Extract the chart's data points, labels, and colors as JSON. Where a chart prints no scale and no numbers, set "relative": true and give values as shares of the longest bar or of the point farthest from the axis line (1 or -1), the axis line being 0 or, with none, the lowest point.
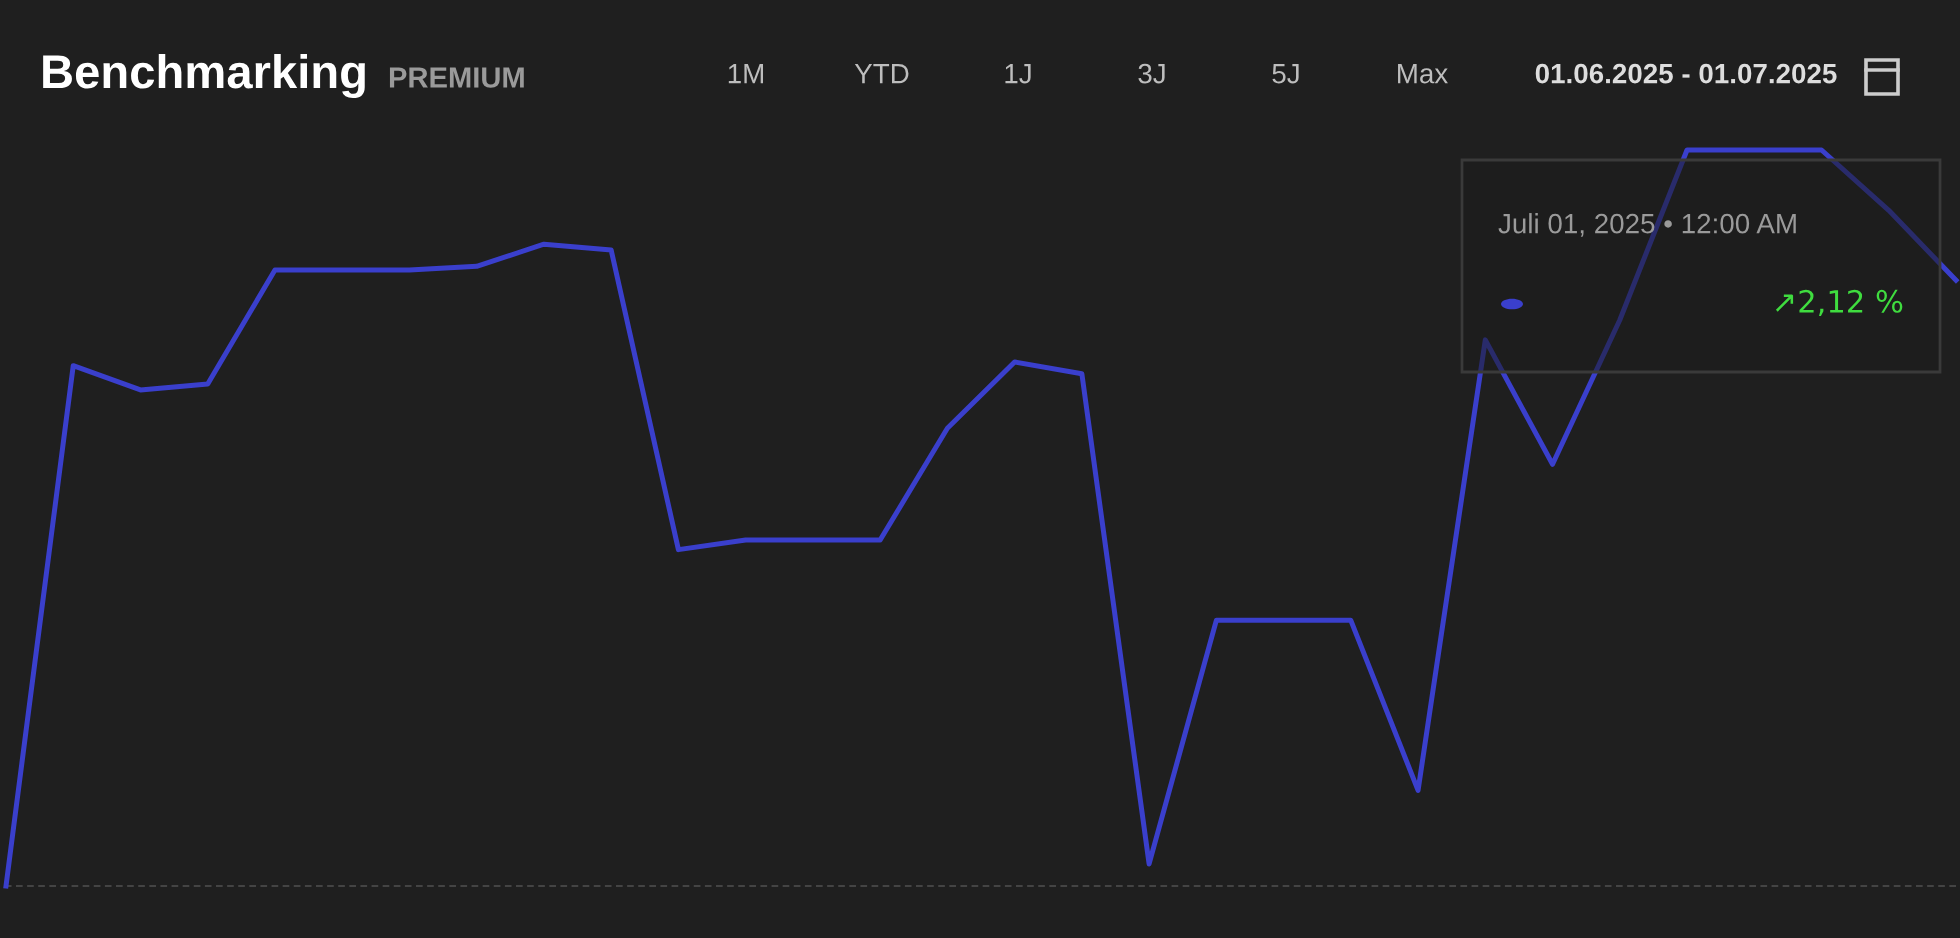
{
  "chart_data": {
    "type": "line",
    "title": "Benchmarking",
    "subtitle": "PREMIUM",
    "relative": true,
    "categories": [
      null,
      null,
      null,
      null,
      null,
      null,
      null,
      null,
      null,
      null,
      null,
      null,
      null,
      null,
      null,
      null,
      null,
      null,
      null,
      null,
      null,
      null,
      null,
      null,
      null,
      null,
      null,
      null,
      null,
      null
    ],
    "series": [
      {
        "color": "#3a3fcc",
        "values": [
          0,
          0.707,
          0.674,
          0.682,
          0.837,
          0.837,
          0.837,
          0.842,
          0.872,
          0.864,
          0.457,
          0.47,
          0.47,
          0.47,
          0.622,
          0.712,
          0.696,
          0.03,
          0.361,
          0.361,
          0.361,
          0.13,
          0.742,
          0.573,
          0.769,
          1,
          1,
          1,
          0.918,
          0.823
        ]
      }
    ],
    "annotations": [
      "1M",
      "YTD",
      "1J",
      "3J",
      "5J",
      "Max",
      "01.06.2025 - 01.07.2025",
      "Juli 01, 2025 • 12:00 AM",
      "↗2,12 %"
    ],
    "grid": false,
    "legend": false,
    "marker": "none",
    "line_style": "solid"
  }
}
